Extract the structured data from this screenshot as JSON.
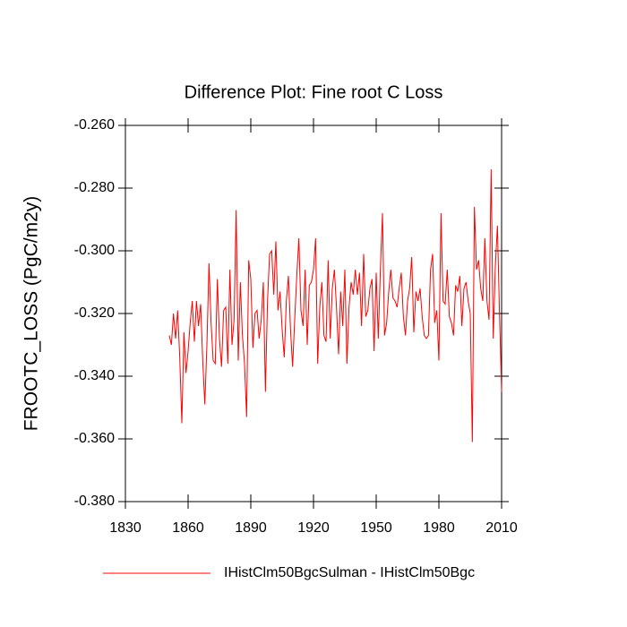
{
  "chart_data": {
    "type": "line",
    "title": "Difference Plot: Fine root C Loss",
    "y_label": "FROOTC_LOSS  (PgC/m2y)",
    "xlim": [
      1830,
      2010
    ],
    "xticks": [
      1830,
      1860,
      1890,
      1920,
      1950,
      1980,
      2010
    ],
    "ylim": [
      -0.38,
      -0.26
    ],
    "yticks": [
      {
        "value": -0.38,
        "label": "-0.380"
      },
      {
        "value": -0.36,
        "label": "-0.360"
      },
      {
        "value": -0.34,
        "label": "-0.340"
      },
      {
        "value": -0.32,
        "label": "-0.320"
      },
      {
        "value": -0.3,
        "label": "-0.300"
      },
      {
        "value": -0.28,
        "label": "-0.280"
      },
      {
        "value": -0.26,
        "label": "-0.260"
      }
    ],
    "grid": false,
    "x": [
      1851,
      1852,
      1853,
      1854,
      1855,
      1856,
      1857,
      1858,
      1859,
      1860,
      1861,
      1862,
      1863,
      1864,
      1865,
      1866,
      1867,
      1868,
      1869,
      1870,
      1871,
      1872,
      1873,
      1874,
      1875,
      1876,
      1877,
      1878,
      1879,
      1880,
      1881,
      1882,
      1883,
      1884,
      1885,
      1886,
      1887,
      1888,
      1889,
      1890,
      1891,
      1892,
      1893,
      1894,
      1895,
      1896,
      1897,
      1898,
      1899,
      1900,
      1901,
      1902,
      1903,
      1904,
      1905,
      1906,
      1907,
      1908,
      1909,
      1910,
      1911,
      1912,
      1913,
      1914,
      1915,
      1916,
      1917,
      1918,
      1919,
      1920,
      1921,
      1922,
      1923,
      1924,
      1925,
      1926,
      1927,
      1928,
      1929,
      1930,
      1931,
      1932,
      1933,
      1934,
      1935,
      1936,
      1937,
      1938,
      1939,
      1940,
      1941,
      1942,
      1943,
      1944,
      1945,
      1946,
      1947,
      1948,
      1949,
      1950,
      1951,
      1952,
      1953,
      1954,
      1955,
      1956,
      1957,
      1958,
      1959,
      1960,
      1961,
      1962,
      1963,
      1964,
      1965,
      1966,
      1967,
      1968,
      1969,
      1970,
      1971,
      1972,
      1973,
      1974,
      1975,
      1976,
      1977,
      1978,
      1979,
      1980,
      1981,
      1982,
      1983,
      1984,
      1985,
      1986,
      1987,
      1988,
      1989,
      1990,
      1991,
      1992,
      1993,
      1994,
      1995,
      1996,
      1997,
      1998,
      1999,
      2000,
      2001,
      2002,
      2003,
      2004,
      2005,
      2006,
      2007,
      2008,
      2009,
      2010
    ],
    "series": [
      {
        "name": "IHistClm50BgcSulman - IHistClm50Bgc",
        "color": "#ff0000",
        "values": [
          -0.327,
          -0.33,
          -0.32,
          -0.328,
          -0.319,
          -0.334,
          -0.355,
          -0.326,
          -0.339,
          -0.332,
          -0.323,
          -0.316,
          -0.329,
          -0.316,
          -0.324,
          -0.317,
          -0.335,
          -0.349,
          -0.33,
          -0.304,
          -0.323,
          -0.335,
          -0.336,
          -0.309,
          -0.328,
          -0.337,
          -0.319,
          -0.318,
          -0.336,
          -0.306,
          -0.33,
          -0.322,
          -0.287,
          -0.335,
          -0.31,
          -0.327,
          -0.336,
          -0.353,
          -0.303,
          -0.309,
          -0.331,
          -0.32,
          -0.319,
          -0.328,
          -0.322,
          -0.31,
          -0.345,
          -0.316,
          -0.301,
          -0.3,
          -0.314,
          -0.297,
          -0.319,
          -0.313,
          -0.325,
          -0.334,
          -0.316,
          -0.308,
          -0.325,
          -0.337,
          -0.322,
          -0.308,
          -0.296,
          -0.319,
          -0.324,
          -0.306,
          -0.33,
          -0.311,
          -0.31,
          -0.306,
          -0.296,
          -0.336,
          -0.318,
          -0.31,
          -0.327,
          -0.329,
          -0.303,
          -0.328,
          -0.312,
          -0.306,
          -0.318,
          -0.333,
          -0.313,
          -0.324,
          -0.306,
          -0.336,
          -0.318,
          -0.31,
          -0.314,
          -0.306,
          -0.314,
          -0.307,
          -0.324,
          -0.301,
          -0.321,
          -0.319,
          -0.312,
          -0.309,
          -0.332,
          -0.307,
          -0.328,
          -0.306,
          -0.288,
          -0.327,
          -0.323,
          -0.313,
          -0.306,
          -0.315,
          -0.316,
          -0.318,
          -0.312,
          -0.307,
          -0.321,
          -0.327,
          -0.316,
          -0.312,
          -0.302,
          -0.326,
          -0.313,
          -0.316,
          -0.312,
          -0.321,
          -0.327,
          -0.328,
          -0.327,
          -0.306,
          -0.301,
          -0.323,
          -0.319,
          -0.335,
          -0.288,
          -0.316,
          -0.317,
          -0.306,
          -0.321,
          -0.323,
          -0.327,
          -0.311,
          -0.313,
          -0.308,
          -0.324,
          -0.312,
          -0.31,
          -0.316,
          -0.32,
          -0.361,
          -0.286,
          -0.306,
          -0.303,
          -0.312,
          -0.316,
          -0.296,
          -0.316,
          -0.322,
          -0.274,
          -0.328,
          -0.305,
          -0.292,
          -0.32,
          -0.345
        ]
      }
    ]
  }
}
